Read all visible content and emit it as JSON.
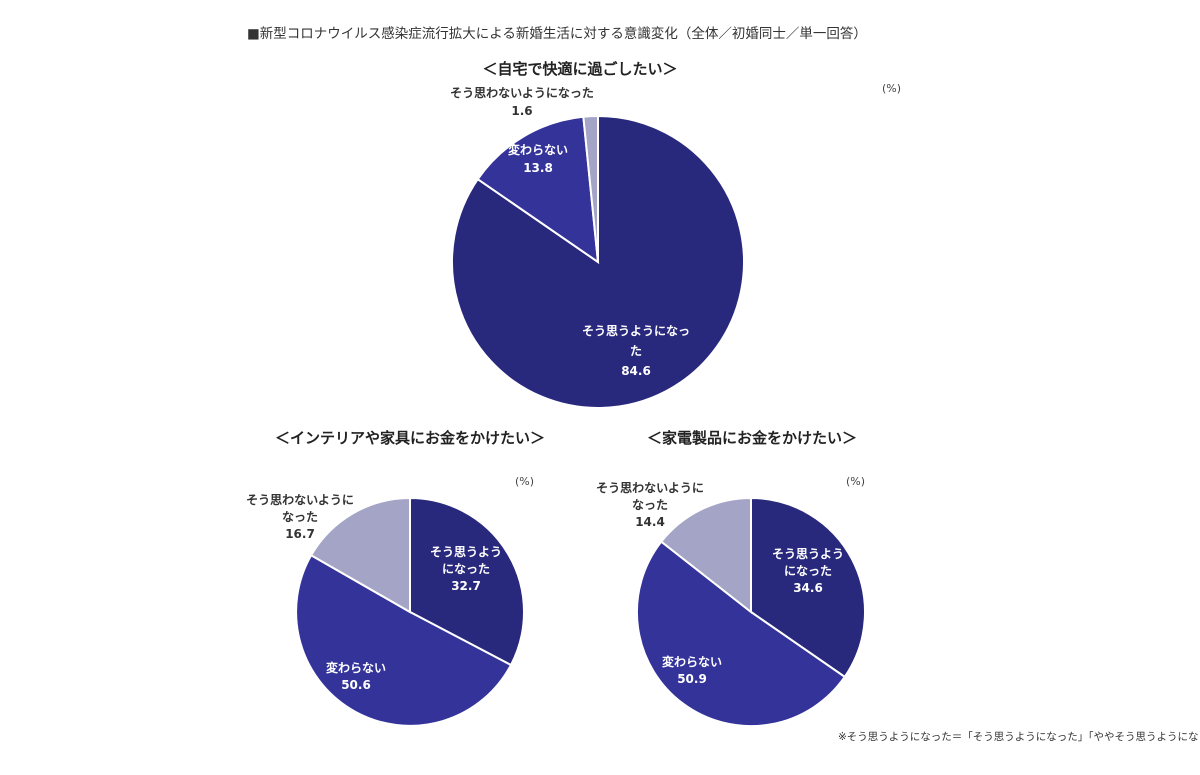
{
  "header": {
    "title": "■新型コロナウイルス感染症流行拡大による新婚生活に対する意識変化（全体／初婚同士／単一回答）"
  },
  "colors": {
    "strong": "#28287d",
    "medium": "#33339a",
    "light": "#a4a4c6"
  },
  "footnote": "※そう思うようになった＝「そう思うようになった」「ややそう思うようになった」計",
  "chart_data": [
    {
      "type": "pie",
      "title": "＜自宅で快適に過ごしたい＞",
      "unit": "(%)",
      "slices": [
        {
          "label_lines": [
            "そう思うようになっ",
            "た"
          ],
          "value": 84.6,
          "value_text": "84.6",
          "color": "#28287d"
        },
        {
          "label_lines": [
            "変わらない"
          ],
          "value": 13.8,
          "value_text": "13.8",
          "color": "#33339a"
        },
        {
          "label_lines": [
            "そう思わないようになった"
          ],
          "value": 1.6,
          "value_text": "1.6",
          "color": "#a4a4c6"
        }
      ]
    },
    {
      "type": "pie",
      "title": "＜インテリアや家具にお金をかけたい＞",
      "unit": "(%)",
      "slices": [
        {
          "label_lines": [
            "そう思うよう",
            "になった"
          ],
          "value": 32.7,
          "value_text": "32.7",
          "color": "#28287d"
        },
        {
          "label_lines": [
            "変わらない"
          ],
          "value": 50.6,
          "value_text": "50.6",
          "color": "#33339a"
        },
        {
          "label_lines": [
            "そう思わないように",
            "なった"
          ],
          "value": 16.7,
          "value_text": "16.7",
          "color": "#a4a4c6"
        }
      ]
    },
    {
      "type": "pie",
      "title": "＜家電製品にお金をかけたい＞",
      "unit": "(%)",
      "slices": [
        {
          "label_lines": [
            "そう思うよう",
            "になった"
          ],
          "value": 34.6,
          "value_text": "34.6",
          "color": "#28287d"
        },
        {
          "label_lines": [
            "変わらない"
          ],
          "value": 50.9,
          "value_text": "50.9",
          "color": "#33339a"
        },
        {
          "label_lines": [
            "そう思わないように",
            "なった"
          ],
          "value": 14.4,
          "value_text": "14.4",
          "color": "#a4a4c6"
        }
      ]
    }
  ]
}
